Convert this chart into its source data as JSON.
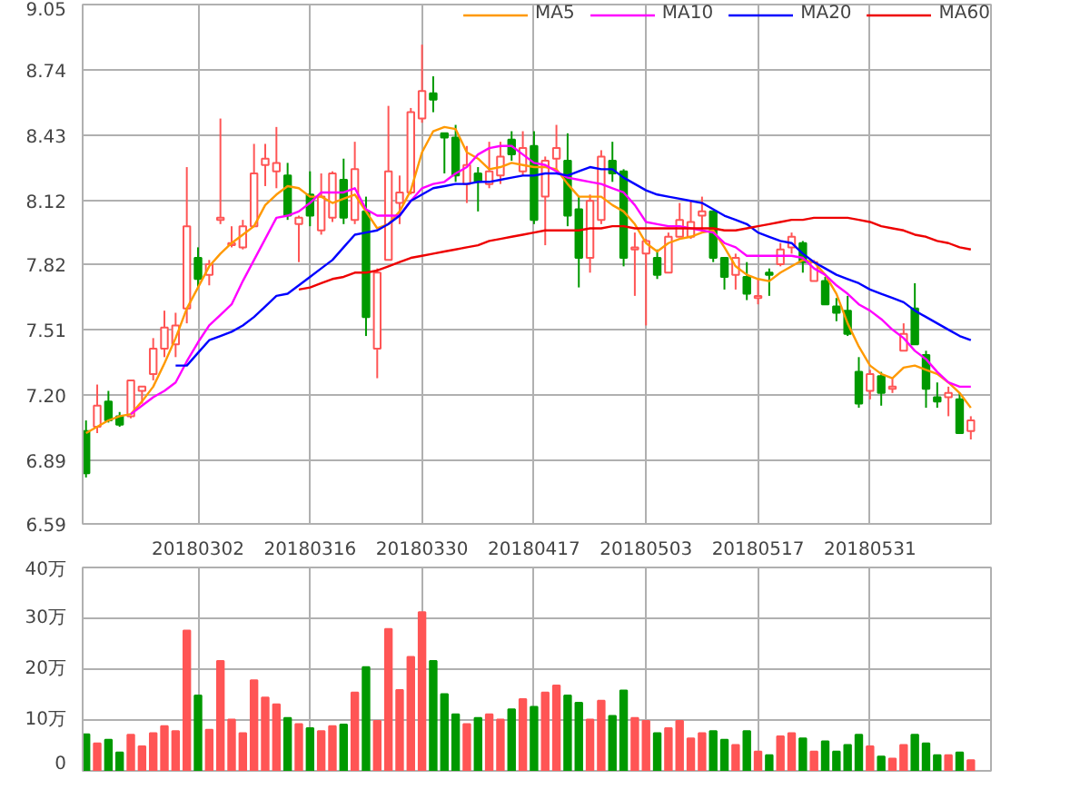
{
  "chart_data": [
    {
      "type": "candlestick",
      "categories": [
        null,
        null,
        null,
        null,
        null,
        null,
        null,
        null,
        null,
        null,
        "20180302",
        null,
        null,
        null,
        null,
        null,
        null,
        null,
        null,
        null,
        "20180316",
        null,
        null,
        null,
        null,
        null,
        null,
        null,
        null,
        null,
        "20180330",
        null,
        null,
        null,
        null,
        null,
        null,
        null,
        null,
        null,
        "20180417",
        null,
        null,
        null,
        null,
        null,
        null,
        null,
        null,
        null,
        "20180503",
        null,
        null,
        null,
        null,
        null,
        null,
        null,
        null,
        null,
        "20180517",
        null,
        null,
        null,
        null,
        null,
        null,
        null,
        null,
        null,
        "20180531",
        null,
        null,
        null,
        null,
        null,
        null,
        null,
        null,
        null
      ],
      "ohlc": [
        [
          7.03,
          7.08,
          6.81,
          6.83
        ],
        [
          7.05,
          7.25,
          7.02,
          7.15
        ],
        [
          7.17,
          7.22,
          7.07,
          7.08
        ],
        [
          7.1,
          7.12,
          7.05,
          7.06
        ],
        [
          7.1,
          7.27,
          7.09,
          7.27
        ],
        [
          7.22,
          7.24,
          7.16,
          7.24
        ],
        [
          7.3,
          7.47,
          7.27,
          7.42
        ],
        [
          7.42,
          7.6,
          7.38,
          7.52
        ],
        [
          7.44,
          7.59,
          7.38,
          7.53
        ],
        [
          7.61,
          8.28,
          7.54,
          8.0
        ],
        [
          7.85,
          7.9,
          7.71,
          7.75
        ],
        [
          7.77,
          7.84,
          7.72,
          7.82
        ],
        [
          8.03,
          8.51,
          8.01,
          8.04
        ],
        [
          7.91,
          8.0,
          7.9,
          7.92
        ],
        [
          7.9,
          8.03,
          7.89,
          8.0
        ],
        [
          8.0,
          8.39,
          8.0,
          8.25
        ],
        [
          8.29,
          8.39,
          8.19,
          8.32
        ],
        [
          8.26,
          8.47,
          8.18,
          8.3
        ],
        [
          8.24,
          8.3,
          8.03,
          8.05
        ],
        [
          8.01,
          8.05,
          7.83,
          8.04
        ],
        [
          8.15,
          8.26,
          8.0,
          8.05
        ],
        [
          7.98,
          8.25,
          7.96,
          8.14
        ],
        [
          8.04,
          8.26,
          8.02,
          8.25
        ],
        [
          8.22,
          8.32,
          8.01,
          8.04
        ],
        [
          8.03,
          8.4,
          8.01,
          8.27
        ],
        [
          8.07,
          8.14,
          7.48,
          7.57
        ],
        [
          7.42,
          7.8,
          7.28,
          7.78
        ],
        [
          7.84,
          8.57,
          7.84,
          8.26
        ],
        [
          8.11,
          8.24,
          8.01,
          8.16
        ],
        [
          8.16,
          8.56,
          8.15,
          8.54
        ],
        [
          8.51,
          8.86,
          8.49,
          8.64
        ],
        [
          8.63,
          8.71,
          8.54,
          8.6
        ],
        [
          8.44,
          8.44,
          8.25,
          8.42
        ],
        [
          8.42,
          8.48,
          8.21,
          8.24
        ],
        [
          8.2,
          8.38,
          8.11,
          8.29
        ],
        [
          8.25,
          8.28,
          8.07,
          8.21
        ],
        [
          8.2,
          8.4,
          8.18,
          8.26
        ],
        [
          8.24,
          8.4,
          8.2,
          8.33
        ],
        [
          8.41,
          8.45,
          8.31,
          8.34
        ],
        [
          8.26,
          8.45,
          8.24,
          8.37
        ],
        [
          8.38,
          8.45,
          8.01,
          8.03
        ],
        [
          8.14,
          8.33,
          7.91,
          8.31
        ],
        [
          8.32,
          8.48,
          8.27,
          8.37
        ],
        [
          8.31,
          8.44,
          8.0,
          8.05
        ],
        [
          8.08,
          8.14,
          7.71,
          7.85
        ],
        [
          7.85,
          8.15,
          7.78,
          8.12
        ],
        [
          8.03,
          8.36,
          8.01,
          8.33
        ],
        [
          8.31,
          8.4,
          8.21,
          8.25
        ],
        [
          8.26,
          8.27,
          7.81,
          7.85
        ],
        [
          7.89,
          7.97,
          7.67,
          7.9
        ],
        [
          7.87,
          7.94,
          7.53,
          7.93
        ],
        [
          7.85,
          7.89,
          7.75,
          7.77
        ],
        [
          7.78,
          7.97,
          7.78,
          7.95
        ],
        [
          7.95,
          8.11,
          7.95,
          8.03
        ],
        [
          7.95,
          8.12,
          7.94,
          8.02
        ],
        [
          8.05,
          8.14,
          7.98,
          8.07
        ],
        [
          8.07,
          8.07,
          7.83,
          7.85
        ],
        [
          7.85,
          7.85,
          7.7,
          7.76
        ],
        [
          7.77,
          7.87,
          7.7,
          7.85
        ],
        [
          7.76,
          7.83,
          7.65,
          7.68
        ],
        [
          7.66,
          7.75,
          7.63,
          7.67
        ],
        [
          7.78,
          7.8,
          7.67,
          7.77
        ],
        [
          7.82,
          7.92,
          7.81,
          7.89
        ],
        [
          7.9,
          7.97,
          7.87,
          7.95
        ],
        [
          7.92,
          7.93,
          7.78,
          7.83
        ],
        [
          7.74,
          7.84,
          7.74,
          7.83
        ],
        [
          7.74,
          7.76,
          7.63,
          7.63
        ],
        [
          7.62,
          7.66,
          7.55,
          7.59
        ],
        [
          7.6,
          7.67,
          7.48,
          7.49
        ],
        [
          7.31,
          7.38,
          7.14,
          7.16
        ],
        [
          7.22,
          7.32,
          7.18,
          7.3
        ],
        [
          7.29,
          7.31,
          7.15,
          7.21
        ],
        [
          7.23,
          7.28,
          7.21,
          7.24
        ],
        [
          7.41,
          7.54,
          7.41,
          7.49
        ],
        [
          7.61,
          7.73,
          7.44,
          7.44
        ],
        [
          7.39,
          7.41,
          7.14,
          7.23
        ],
        [
          7.19,
          7.26,
          7.14,
          7.17
        ],
        [
          7.19,
          7.24,
          7.1,
          7.21
        ],
        [
          7.18,
          7.21,
          7.02,
          7.02
        ],
        [
          7.03,
          7.1,
          6.99,
          7.08
        ]
      ],
      "colors": [
        "#009900",
        "#ff5555",
        "#009900",
        "#009900",
        "#ff5555",
        "#ff5555",
        "#ff5555",
        "#ff5555",
        "#ff5555",
        "#ff5555",
        "#009900",
        "#ff5555",
        "#ff5555",
        "#ff5555",
        "#ff5555",
        "#ff5555",
        "#ff5555",
        "#ff5555",
        "#009900",
        "#ff5555",
        "#009900",
        "#ff5555",
        "#ff5555",
        "#009900",
        "#ff5555",
        "#009900",
        "#ff5555",
        "#ff5555",
        "#ff5555",
        "#ff5555",
        "#ff5555",
        "#009900",
        "#009900",
        "#009900",
        "#ff5555",
        "#009900",
        "#ff5555",
        "#ff5555",
        "#009900",
        "#ff5555",
        "#009900",
        "#ff5555",
        "#ff5555",
        "#009900",
        "#009900",
        "#ff5555",
        "#ff5555",
        "#009900",
        "#009900",
        "#ff5555",
        "#ff5555",
        "#009900",
        "#ff5555",
        "#ff5555",
        "#ff5555",
        "#ff5555",
        "#009900",
        "#009900",
        "#ff5555",
        "#009900",
        "#ff5555",
        "#009900",
        "#ff5555",
        "#ff5555",
        "#009900",
        "#ff5555",
        "#009900",
        "#009900",
        "#009900",
        "#009900",
        "#ff5555",
        "#009900",
        "#ff5555",
        "#ff5555",
        "#009900",
        "#009900",
        "#009900",
        "#ff5555",
        "#009900",
        "#ff5555"
      ],
      "series": [
        {
          "type": "line",
          "name": "MA5",
          "color": "#ff9900",
          "values": [
            7.02,
            7.05,
            7.08,
            7.1,
            7.11,
            7.17,
            7.24,
            7.35,
            7.47,
            7.61,
            7.71,
            7.81,
            7.87,
            7.92,
            7.96,
            8.0,
            8.1,
            8.15,
            8.19,
            8.18,
            8.14,
            8.14,
            8.11,
            8.13,
            8.15,
            8.07,
            7.99,
            8.01,
            8.07,
            8.17,
            8.35,
            8.45,
            8.47,
            8.46,
            8.35,
            8.32,
            8.27,
            8.28,
            8.3,
            8.29,
            8.28,
            8.28,
            8.27,
            8.2,
            8.14,
            8.14,
            8.14,
            8.1,
            8.07,
            8.01,
            7.92,
            7.88,
            7.92,
            7.94,
            7.95,
            7.97,
            7.98,
            7.9,
            7.81,
            7.77,
            7.75,
            7.74,
            7.78,
            7.81,
            7.84,
            7.83,
            7.77,
            7.68,
            7.54,
            7.43,
            7.34,
            7.3,
            7.28,
            7.33,
            7.34,
            7.32,
            7.3,
            7.26,
            7.21,
            7.14
          ]
        },
        {
          "type": "line",
          "name": "MA10",
          "color": "#ff00ff",
          "values": [
            null,
            null,
            null,
            null,
            7.11,
            7.15,
            7.19,
            7.22,
            7.26,
            7.36,
            7.45,
            7.53,
            7.58,
            7.63,
            7.74,
            7.84,
            7.94,
            8.04,
            8.05,
            8.07,
            8.11,
            8.16,
            8.16,
            8.16,
            8.18,
            8.08,
            8.05,
            8.05,
            8.05,
            8.12,
            8.18,
            8.2,
            8.21,
            8.25,
            8.28,
            8.34,
            8.37,
            8.38,
            8.38,
            8.34,
            8.3,
            8.29,
            8.26,
            8.23,
            8.22,
            8.21,
            8.2,
            8.18,
            8.16,
            8.1,
            8.02,
            8.01,
            8.0,
            8.0,
            7.99,
            7.98,
            7.97,
            7.92,
            7.9,
            7.86,
            7.86,
            7.86,
            7.86,
            7.86,
            7.85,
            7.8,
            7.77,
            7.72,
            7.68,
            7.63,
            7.6,
            7.56,
            7.51,
            7.47,
            7.41,
            7.37,
            7.31,
            7.26,
            7.24,
            7.24
          ]
        },
        {
          "type": "line",
          "name": "MA20",
          "color": "#0000ff",
          "values": [
            null,
            null,
            null,
            null,
            null,
            null,
            null,
            null,
            7.34,
            7.34,
            7.4,
            7.46,
            7.48,
            7.5,
            7.53,
            7.57,
            7.62,
            7.67,
            7.68,
            7.72,
            7.76,
            7.8,
            7.84,
            7.9,
            7.96,
            7.97,
            7.98,
            8.01,
            8.05,
            8.12,
            8.15,
            8.18,
            8.19,
            8.2,
            8.2,
            8.21,
            8.21,
            8.22,
            8.23,
            8.24,
            8.24,
            8.25,
            8.25,
            8.24,
            8.26,
            8.28,
            8.27,
            8.27,
            8.23,
            8.2,
            8.17,
            8.15,
            8.14,
            8.13,
            8.12,
            8.11,
            8.08,
            8.05,
            8.03,
            8.01,
            7.97,
            7.95,
            7.93,
            7.92,
            7.87,
            7.83,
            7.8,
            7.77,
            7.75,
            7.73,
            7.7,
            7.68,
            7.66,
            7.64,
            7.6,
            7.57,
            7.54,
            7.51,
            7.48,
            7.46
          ]
        },
        {
          "type": "line",
          "name": "MA60",
          "color": "#ee0000",
          "values": [
            null,
            null,
            null,
            null,
            null,
            null,
            null,
            null,
            null,
            null,
            null,
            null,
            null,
            null,
            null,
            null,
            null,
            null,
            null,
            7.7,
            7.71,
            7.73,
            7.75,
            7.76,
            7.78,
            7.78,
            7.79,
            7.81,
            7.83,
            7.85,
            7.86,
            7.87,
            7.88,
            7.89,
            7.9,
            7.91,
            7.93,
            7.94,
            7.95,
            7.96,
            7.97,
            7.98,
            7.98,
            7.98,
            7.98,
            7.99,
            7.99,
            8.0,
            8.0,
            7.99,
            7.99,
            7.99,
            7.99,
            7.99,
            7.99,
            7.99,
            7.99,
            7.98,
            7.98,
            7.99,
            8.0,
            8.01,
            8.02,
            8.03,
            8.03,
            8.04,
            8.04,
            8.04,
            8.04,
            8.03,
            8.02,
            8.0,
            7.99,
            7.98,
            7.96,
            7.95,
            7.93,
            7.92,
            7.9,
            7.89
          ]
        }
      ],
      "ylim": [
        6.59,
        9.05
      ],
      "yticks": [
        6.59,
        6.89,
        {
          "value": 7.2,
          "label": "7.20"
        },
        7.51,
        7.82,
        8.12,
        8.43,
        8.74,
        9.05
      ],
      "grid": true,
      "legend": "top"
    },
    {
      "type": "bar",
      "categories": [
        null,
        null,
        null,
        null,
        null,
        null,
        null,
        null,
        null,
        null,
        null,
        null,
        null,
        null,
        null,
        null,
        null,
        null,
        null,
        null,
        null,
        null,
        null,
        null,
        null,
        null,
        null,
        null,
        null,
        null,
        null,
        null,
        null,
        null,
        null,
        null,
        null,
        null,
        null,
        null,
        null,
        null,
        null,
        null,
        null,
        null,
        null,
        null,
        null,
        null,
        null,
        null,
        null,
        null,
        null,
        null,
        null,
        null,
        null,
        null,
        null,
        null,
        null,
        null,
        null,
        null,
        null,
        null,
        null,
        null,
        null,
        null,
        null,
        null,
        null,
        null,
        null,
        null,
        null,
        null
      ],
      "values": [
        7.2,
        5.4,
        6.1,
        3.6,
        7.1,
        4.8,
        7.4,
        8.8,
        7.8,
        27.6,
        14.8,
        8.1,
        21.6,
        10.1,
        7.4,
        17.8,
        14.4,
        13.1,
        10.4,
        9.2,
        8.4,
        7.8,
        8.8,
        9.1,
        15.4,
        20.4,
        9.8,
        27.9,
        15.9,
        22.4,
        31.2,
        21.6,
        15.1,
        11.1,
        9.2,
        10.4,
        11.1,
        10.1,
        12.1,
        14.1,
        12.6,
        15.4,
        16.8,
        14.8,
        13.4,
        10.1,
        13.8,
        10.8,
        15.8,
        10.4,
        9.8,
        7.4,
        8.4,
        9.8,
        6.4,
        7.4,
        7.8,
        6.1,
        5.1,
        7.8,
        3.8,
        3.1,
        6.8,
        7.4,
        6.4,
        3.8,
        5.8,
        3.8,
        5.1,
        7.1,
        4.8,
        2.8,
        2.4,
        5.1,
        7.1,
        5.4,
        3.1,
        3.1,
        3.6,
        2.1
      ],
      "colors": [
        "#009900",
        "#ff5555",
        "#009900",
        "#009900",
        "#ff5555",
        "#ff5555",
        "#ff5555",
        "#ff5555",
        "#ff5555",
        "#ff5555",
        "#009900",
        "#ff5555",
        "#ff5555",
        "#ff5555",
        "#ff5555",
        "#ff5555",
        "#ff5555",
        "#ff5555",
        "#009900",
        "#ff5555",
        "#009900",
        "#ff5555",
        "#ff5555",
        "#009900",
        "#ff5555",
        "#009900",
        "#ff5555",
        "#ff5555",
        "#ff5555",
        "#ff5555",
        "#ff5555",
        "#009900",
        "#009900",
        "#009900",
        "#ff5555",
        "#009900",
        "#ff5555",
        "#ff5555",
        "#009900",
        "#ff5555",
        "#009900",
        "#ff5555",
        "#ff5555",
        "#009900",
        "#009900",
        "#ff5555",
        "#ff5555",
        "#009900",
        "#009900",
        "#ff5555",
        "#ff5555",
        "#009900",
        "#ff5555",
        "#ff5555",
        "#ff5555",
        "#ff5555",
        "#009900",
        "#009900",
        "#ff5555",
        "#009900",
        "#ff5555",
        "#009900",
        "#ff5555",
        "#ff5555",
        "#009900",
        "#ff5555",
        "#009900",
        "#009900",
        "#009900",
        "#009900",
        "#ff5555",
        "#009900",
        "#ff5555",
        "#ff5555",
        "#009900",
        "#009900",
        "#009900",
        "#ff5555",
        "#009900",
        "#ff5555"
      ],
      "ylim": [
        0,
        40
      ],
      "yticks": [
        0,
        {
          "value": 10,
          "label": "10万"
        },
        {
          "value": 20,
          "label": "20万"
        },
        {
          "value": 30,
          "label": "30万"
        },
        {
          "value": 40,
          "label": "40万"
        }
      ],
      "tick_labels": "y",
      "grid": true
    }
  ]
}
